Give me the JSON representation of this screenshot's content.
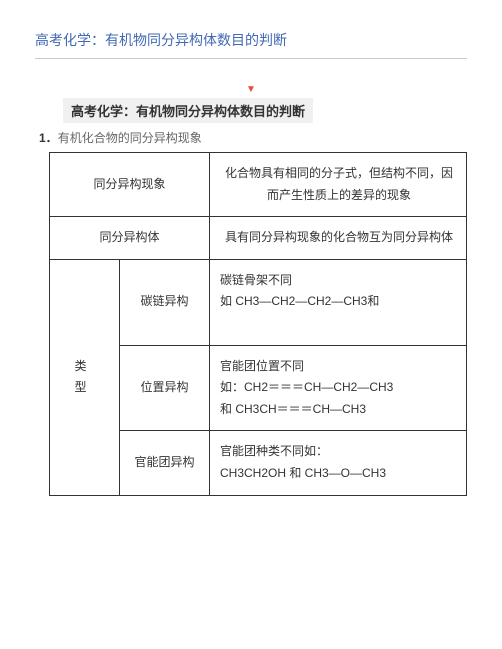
{
  "header": {
    "title": "高考化学：有机物同分异构体数目的判断"
  },
  "triangle_marker": "▼",
  "subtitle": "高考化学：有机物同分异构体数目的判断",
  "section": {
    "number": "1．",
    "text": "有机化合物的同分异构现象"
  },
  "table": {
    "row1": {
      "label": "同分异构现象",
      "desc": "化合物具有相同的分子式，但结构不同，因而产生性质上的差异的现象"
    },
    "row2": {
      "label": "同分异构体",
      "desc": "具有同分异构现象的化合物互为同分异构体"
    },
    "category_label": "类　型",
    "carbon": {
      "label": "碳链异构",
      "line1": "碳链骨架不同",
      "line2": "如 CH3—CH2—CH2—CH3和"
    },
    "position": {
      "label": "位置异构",
      "line1": "官能团位置不同",
      "line2": "如：CH2＝＝＝CH—CH2—CH3",
      "line3": "和 CH3CH＝＝＝CH—CH3"
    },
    "functional": {
      "label": "官能团异构",
      "line1": "官能团种类不同如：",
      "line2": "CH3CH2OH 和 CH3—O—CH3"
    }
  },
  "colors": {
    "title_color": "#4169b5",
    "triangle_color": "#e74c3c",
    "text_color": "#333333",
    "muted_color": "#666666",
    "divider_color": "#cccccc",
    "subtitle_bg": "#f0f0f0"
  }
}
